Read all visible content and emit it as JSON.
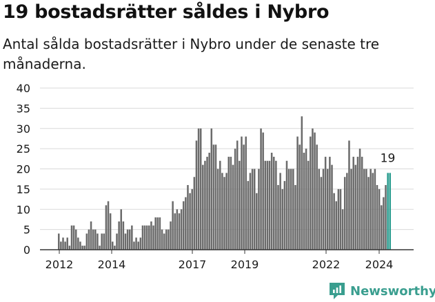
{
  "title": "19 bostadsrätter såldes i Nybro",
  "subtitle": "Antal sålda bostadsrätter i Nybro under de senaste tre månaderna.",
  "brand": "Newsworthy",
  "colors": {
    "bar": "#6b6b6b",
    "highlight": "#2a9d8f",
    "grid": "#d9d9d9",
    "axis": "#333333",
    "brand": "#3a9e8f"
  },
  "chart_data": {
    "type": "bar",
    "grid": true,
    "ylim": [
      0,
      40
    ],
    "yticks": [
      0,
      5,
      10,
      15,
      20,
      25,
      30,
      35,
      40
    ],
    "xticks": [
      "2012",
      "2014",
      "2017",
      "2019",
      "2022",
      "2024"
    ],
    "annotation": "19",
    "values": [
      4,
      2,
      3,
      2,
      3,
      1,
      6,
      6,
      5,
      3,
      2,
      1,
      1,
      4,
      5,
      7,
      5,
      5,
      4,
      1,
      4,
      4,
      11,
      12,
      9,
      2,
      1,
      4,
      7,
      10,
      7,
      4,
      5,
      5,
      6,
      2,
      3,
      2,
      3,
      6,
      6,
      6,
      6,
      7,
      6,
      8,
      8,
      8,
      5,
      4,
      5,
      5,
      7,
      12,
      9,
      10,
      9,
      10,
      12,
      13,
      16,
      14,
      15,
      18,
      27,
      30,
      30,
      21,
      22,
      23,
      24,
      30,
      26,
      26,
      20,
      22,
      19,
      18,
      19,
      23,
      23,
      21,
      25,
      27,
      22,
      28,
      26,
      28,
      17,
      19,
      20,
      20,
      14,
      20,
      30,
      29,
      22,
      22,
      22,
      24,
      23,
      22,
      16,
      19,
      15,
      17,
      22,
      20,
      20,
      20,
      16,
      28,
      26,
      33,
      24,
      25,
      22,
      28,
      30,
      29,
      26,
      20,
      18,
      20,
      23,
      20,
      23,
      21,
      14,
      12,
      15,
      15,
      10,
      18,
      19,
      27,
      20,
      23,
      21,
      23,
      25,
      23,
      20,
      20,
      18,
      20,
      19,
      20,
      16,
      15,
      11,
      13,
      16,
      19,
      19
    ],
    "highlight_last": 2
  }
}
